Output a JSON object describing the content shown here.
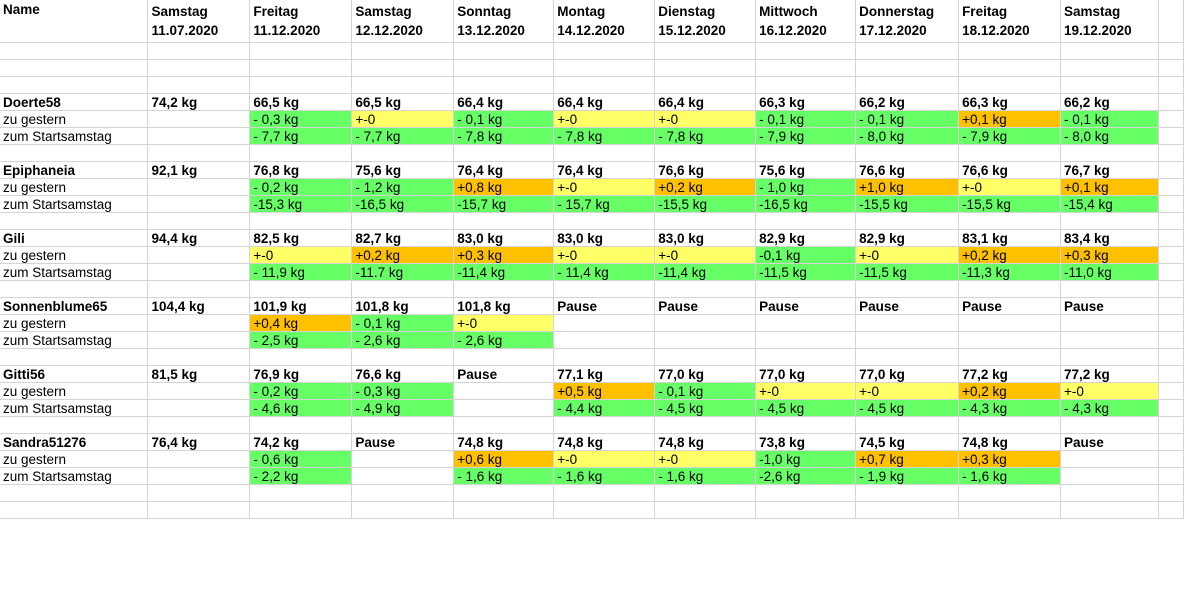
{
  "header": {
    "name_label": "Name",
    "dates": [
      {
        "day": "Samstag",
        "date": "11.07.2020"
      },
      {
        "day": "Freitag",
        "date": "11.12.2020"
      },
      {
        "day": "Samstag",
        "date": "12.12.2020"
      },
      {
        "day": "Sonntag",
        "date": "13.12.2020"
      },
      {
        "day": "Montag",
        "date": "14.12.2020"
      },
      {
        "day": "Dienstag",
        "date": "15.12.2020"
      },
      {
        "day": "Mittwoch",
        "date": "16.12.2020"
      },
      {
        "day": "Donnerstag",
        "date": "17.12.2020"
      },
      {
        "day": "Freitag",
        "date": "18.12.2020"
      },
      {
        "day": "Samstag",
        "date": "19.12.2020"
      }
    ]
  },
  "row_labels": {
    "daily": "zu gestern",
    "start": "zum Startsamstag"
  },
  "colors": {
    "green": "#66ff66",
    "yellow": "#ffff66",
    "orange": "#ffc000"
  },
  "persons": [
    {
      "name": "Doerte58",
      "start": "74,2 kg",
      "weights": [
        "66,5 kg",
        "66,5 kg",
        "66,4 kg",
        "66,4 kg",
        "66,4 kg",
        "66,3 kg",
        "66,2 kg",
        "66,3 kg",
        "66,2 kg"
      ],
      "daily": [
        {
          "v": "- 0,3 kg",
          "c": "g"
        },
        {
          "v": "+-0",
          "c": "y"
        },
        {
          "v": "- 0,1 kg",
          "c": "g"
        },
        {
          "v": "+-0",
          "c": "y"
        },
        {
          "v": "+-0",
          "c": "y"
        },
        {
          "v": "- 0,1 kg",
          "c": "g"
        },
        {
          "v": "- 0,1 kg",
          "c": "g"
        },
        {
          "v": "+0,1 kg",
          "c": "o"
        },
        {
          "v": "- 0,1 kg",
          "c": "g"
        }
      ],
      "total": [
        {
          "v": "- 7,7 kg",
          "c": "g"
        },
        {
          "v": "- 7,7 kg",
          "c": "g"
        },
        {
          "v": "- 7,8 kg",
          "c": "g"
        },
        {
          "v": "- 7,8 kg",
          "c": "g"
        },
        {
          "v": "- 7,8 kg",
          "c": "g"
        },
        {
          "v": "- 7,9 kg",
          "c": "g"
        },
        {
          "v": "- 8,0 kg",
          "c": "g"
        },
        {
          "v": "- 7,9 kg",
          "c": "g"
        },
        {
          "v": "- 8,0 kg",
          "c": "g"
        }
      ]
    },
    {
      "name": "Epiphaneia",
      "start": "92,1 kg",
      "spell": true,
      "weights": [
        "76,8 kg",
        "75,6 kg",
        "76,4 kg",
        "76,4 kg",
        "76,6 kg",
        "75,6 kg",
        "76,6 kg",
        "76,6 kg",
        "76,7 kg"
      ],
      "daily": [
        {
          "v": "  - 0,2 kg",
          "c": "g"
        },
        {
          "v": "- 1,2 kg",
          "c": "g"
        },
        {
          "v": "+0,8 kg",
          "c": "o"
        },
        {
          "v": "+-0",
          "c": "y"
        },
        {
          "v": "+0,2 kg",
          "c": "o"
        },
        {
          "v": "- 1,0 kg",
          "c": "g"
        },
        {
          "v": "+1,0 kg",
          "c": "o"
        },
        {
          "v": "+-0",
          "c": "y"
        },
        {
          "v": "+0,1 kg",
          "c": "o"
        }
      ],
      "total": [
        {
          "v": "-15,3 kg",
          "c": "g"
        },
        {
          "v": "-16,5 kg",
          "c": "g"
        },
        {
          "v": "-15,7 kg",
          "c": "g"
        },
        {
          "v": "- 15,7 kg",
          "c": "g"
        },
        {
          "v": "-15,5 kg",
          "c": "g"
        },
        {
          "v": "-16,5 kg",
          "c": "g"
        },
        {
          "v": "-15,5 kg",
          "c": "g"
        },
        {
          "v": "-15,5 kg",
          "c": "g"
        },
        {
          "v": "-15,4 kg",
          "c": "g"
        }
      ]
    },
    {
      "name": "Gili",
      "start": "94,4 kg",
      "spell": true,
      "weights": [
        "82,5 kg",
        "82,7 kg",
        "83,0 kg",
        "83,0 kg",
        "83,0 kg",
        "82,9 kg",
        "82,9 kg",
        "83,1 kg",
        "83,4 kg"
      ],
      "daily": [
        {
          "v": "+-0",
          "c": "y"
        },
        {
          "v": "+0,2 kg",
          "c": "o"
        },
        {
          "v": "+0,3 kg",
          "c": "o"
        },
        {
          "v": "+-0",
          "c": "y"
        },
        {
          "v": "+-0",
          "c": "y"
        },
        {
          "v": "-0,1 kg",
          "c": "g"
        },
        {
          "v": "+-0",
          "c": "y"
        },
        {
          "v": "+0,2 kg",
          "c": "o"
        },
        {
          "v": "+0,3 kg",
          "c": "o"
        }
      ],
      "total": [
        {
          "v": "- 11,9 kg",
          "c": "g"
        },
        {
          "v": "-11.7 kg",
          "c": "g"
        },
        {
          "v": "-11,4 kg",
          "c": "g"
        },
        {
          "v": "- 11,4 kg",
          "c": "g"
        },
        {
          "v": "-11,4 kg",
          "c": "g"
        },
        {
          "v": "-11,5 kg",
          "c": "g"
        },
        {
          "v": "-11,5 kg",
          "c": "g"
        },
        {
          "v": "-11,3 kg",
          "c": "g"
        },
        {
          "v": "-11,0 kg",
          "c": "g"
        }
      ]
    },
    {
      "name": "Sonnenblume65",
      "start": "104,4 kg",
      "weights": [
        "101,9 kg",
        "101,8 kg",
        "101,8 kg",
        "Pause",
        "Pause",
        "Pause",
        "Pause",
        "Pause",
        "Pause"
      ],
      "daily": [
        {
          "v": "+0,4 kg",
          "c": "o"
        },
        {
          "v": "- 0,1 kg",
          "c": "g"
        },
        {
          "v": "+-0",
          "c": "y"
        },
        {
          "v": "",
          "c": ""
        },
        {
          "v": "",
          "c": ""
        },
        {
          "v": "",
          "c": ""
        },
        {
          "v": "",
          "c": ""
        },
        {
          "v": "",
          "c": ""
        },
        {
          "v": "",
          "c": ""
        }
      ],
      "total": [
        {
          "v": "- 2,5 kg",
          "c": "g"
        },
        {
          "v": "- 2,6 kg",
          "c": "g"
        },
        {
          "v": "- 2,6 kg",
          "c": "g"
        },
        {
          "v": "",
          "c": ""
        },
        {
          "v": "",
          "c": ""
        },
        {
          "v": "",
          "c": ""
        },
        {
          "v": "",
          "c": ""
        },
        {
          "v": "",
          "c": ""
        },
        {
          "v": "",
          "c": ""
        }
      ]
    },
    {
      "name": "Gitti56",
      "start": "81,5 kg",
      "weights": [
        "76,9 kg",
        "76,6 kg",
        "Pause",
        "77,1 kg",
        "77,0 kg",
        "77,0 kg",
        "77,0 kg",
        "77,2 kg",
        "77,2 kg"
      ],
      "daily": [
        {
          "v": "- 0,2 kg",
          "c": "g"
        },
        {
          "v": "- 0,3 kg",
          "c": "g"
        },
        {
          "v": "",
          "c": ""
        },
        {
          "v": "+0,5 kg",
          "c": "o"
        },
        {
          "v": "- 0,1 kg",
          "c": "g"
        },
        {
          "v": "+-0",
          "c": "y"
        },
        {
          "v": "+-0",
          "c": "y"
        },
        {
          "v": "+0,2 kg",
          "c": "o"
        },
        {
          "v": "+-0",
          "c": "y"
        }
      ],
      "total": [
        {
          "v": "- 4,6 kg",
          "c": "g"
        },
        {
          "v": "- 4,9 kg",
          "c": "g"
        },
        {
          "v": "",
          "c": ""
        },
        {
          "v": "- 4,4 kg",
          "c": "g"
        },
        {
          "v": "- 4,5 kg",
          "c": "g"
        },
        {
          "v": "- 4,5 kg",
          "c": "g"
        },
        {
          "v": "- 4,5 kg",
          "c": "g"
        },
        {
          "v": "- 4,3 kg",
          "c": "g"
        },
        {
          "v": "- 4,3 kg",
          "c": "g"
        }
      ]
    },
    {
      "name": "Sandra51276",
      "start": "76,4 kg",
      "weights": [
        "74,2 kg",
        "Pause",
        "74,8 kg",
        "74,8 kg",
        "74,8 kg",
        "73,8 kg",
        "74,5 kg",
        "74,8 kg",
        "Pause"
      ],
      "daily": [
        {
          "v": "- 0,6 kg",
          "c": "g"
        },
        {
          "v": "",
          "c": ""
        },
        {
          "v": "+0,6 kg",
          "c": "o"
        },
        {
          "v": "+-0",
          "c": "y"
        },
        {
          "v": "+-0",
          "c": "y"
        },
        {
          "v": "-1,0 kg",
          "c": "g"
        },
        {
          "v": "+0,7 kg",
          "c": "o"
        },
        {
          "v": "+0,3 kg",
          "c": "o"
        },
        {
          "v": "",
          "c": ""
        }
      ],
      "total": [
        {
          "v": "- 2,2 kg",
          "c": "g"
        },
        {
          "v": "",
          "c": ""
        },
        {
          "v": "- 1,6 kg",
          "c": "g"
        },
        {
          "v": "- 1,6 kg",
          "c": "g"
        },
        {
          "v": "- 1,6 kg",
          "c": "g"
        },
        {
          "v": "-2,6 kg",
          "c": "g"
        },
        {
          "v": "- 1,9 kg",
          "c": "g"
        },
        {
          "v": "- 1,6 kg",
          "c": "g"
        },
        {
          "v": "",
          "c": ""
        }
      ]
    }
  ]
}
